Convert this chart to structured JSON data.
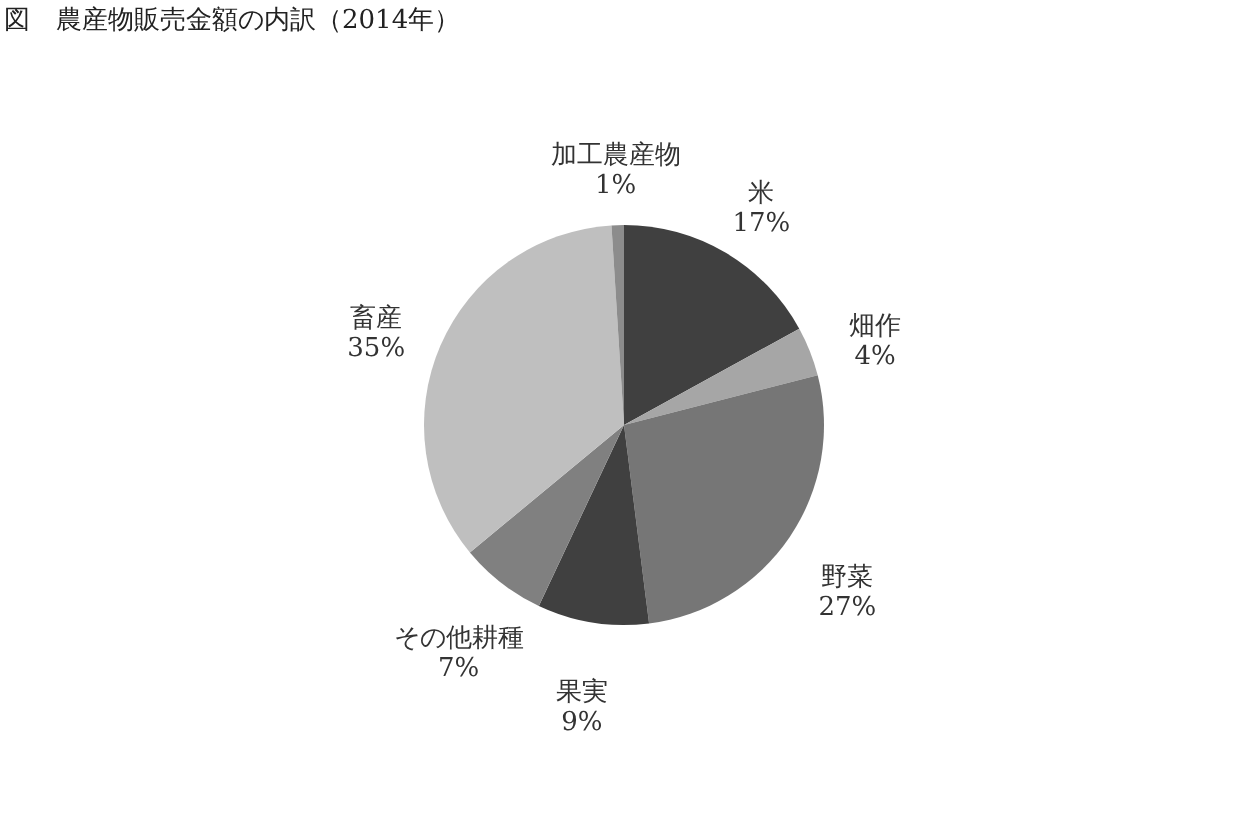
{
  "chart_data": {
    "type": "pie",
    "title": "図　農産物販売金額の内訳（2014年）",
    "categories": [
      "米",
      "畑作",
      "野菜",
      "果実",
      "その他耕種",
      "畜産",
      "加工農産物"
    ],
    "values": [
      17,
      4,
      27,
      9,
      7,
      35,
      1
    ],
    "value_labels": [
      "17%",
      "4%",
      "27%",
      "9%",
      "7%",
      "35%",
      "1%"
    ],
    "colors": [
      "#404040",
      "#a6a6a6",
      "#767676",
      "#404040",
      "#808080",
      "#bfbfbf",
      "#8c8c8c"
    ],
    "legend": false
  }
}
